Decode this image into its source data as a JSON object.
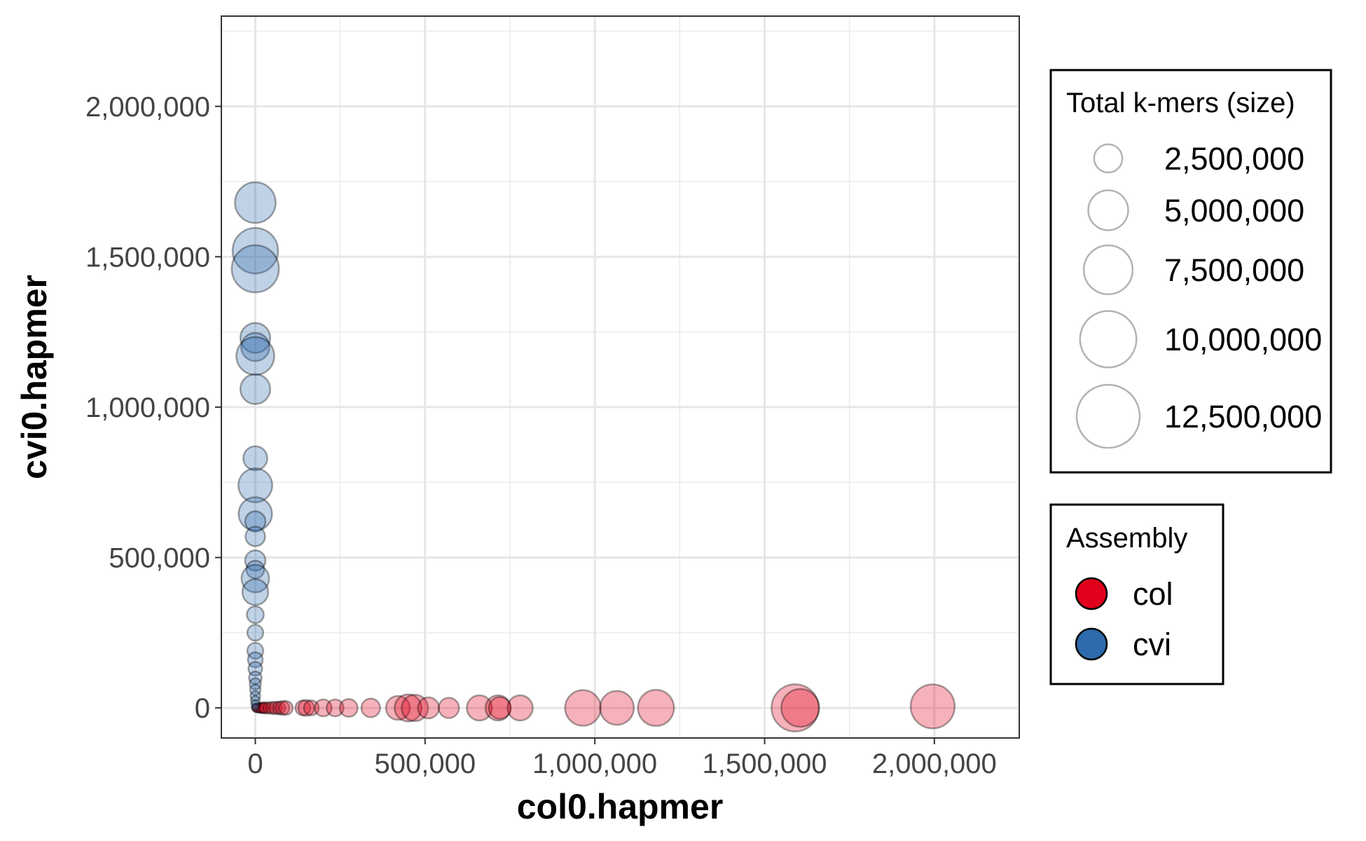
{
  "chart_data": {
    "type": "scatter",
    "title": "",
    "xlabel": "col0.hapmer",
    "ylabel": "cvi0.hapmer",
    "xlim": [
      -100000,
      2250000
    ],
    "ylim": [
      -100000,
      2300000
    ],
    "x_ticks": [
      0,
      500000,
      1000000,
      1500000,
      2000000
    ],
    "x_tick_labels": [
      "0",
      "500,000",
      "1,000,000",
      "1,500,000",
      "2,000,000"
    ],
    "y_ticks": [
      0,
      500000,
      1000000,
      1500000,
      2000000
    ],
    "y_tick_labels": [
      "0",
      "500,000",
      "1,000,000",
      "1,500,000",
      "2,000,000"
    ],
    "grid": true,
    "size_legend": {
      "title": "Total k-mers (size)",
      "entries": [
        {
          "label": "2,500,000",
          "value": 2500000
        },
        {
          "label": "5,000,000",
          "value": 5000000
        },
        {
          "label": "7,500,000",
          "value": 7500000
        },
        {
          "label": "10,000,000",
          "value": 10000000
        },
        {
          "label": "12,500,000",
          "value": 12500000
        }
      ]
    },
    "color_legend": {
      "title": "Assembly",
      "entries": [
        {
          "label": "col",
          "color": "#E0001B"
        },
        {
          "label": "cvi",
          "color": "#2E6BAD"
        }
      ]
    },
    "series": [
      {
        "name": "col",
        "color": "#E0001B",
        "points": [
          {
            "x": 2000,
            "y": 0,
            "size": 200000
          },
          {
            "x": 5000,
            "y": 0,
            "size": 250000
          },
          {
            "x": 10000,
            "y": 0,
            "size": 300000
          },
          {
            "x": 15000,
            "y": 0,
            "size": 300000
          },
          {
            "x": 20000,
            "y": 0,
            "size": 350000
          },
          {
            "x": 25000,
            "y": 0,
            "size": 350000
          },
          {
            "x": 30000,
            "y": 0,
            "size": 400000
          },
          {
            "x": 40000,
            "y": 0,
            "size": 400000
          },
          {
            "x": 50000,
            "y": 0,
            "size": 450000
          },
          {
            "x": 60000,
            "y": 0,
            "size": 500000
          },
          {
            "x": 70000,
            "y": 0,
            "size": 500000
          },
          {
            "x": 80000,
            "y": 0,
            "size": 600000
          },
          {
            "x": 90000,
            "y": 0,
            "size": 600000
          },
          {
            "x": 140000,
            "y": 0,
            "size": 700000
          },
          {
            "x": 150000,
            "y": 0,
            "size": 800000
          },
          {
            "x": 165000,
            "y": 0,
            "size": 700000
          },
          {
            "x": 200000,
            "y": 0,
            "size": 900000
          },
          {
            "x": 235000,
            "y": 0,
            "size": 900000
          },
          {
            "x": 275000,
            "y": 0,
            "size": 1000000
          },
          {
            "x": 340000,
            "y": 0,
            "size": 1100000
          },
          {
            "x": 420000,
            "y": 0,
            "size": 1800000
          },
          {
            "x": 450000,
            "y": 0,
            "size": 2300000
          },
          {
            "x": 470000,
            "y": 0,
            "size": 2200000
          },
          {
            "x": 510000,
            "y": 0,
            "size": 1400000
          },
          {
            "x": 570000,
            "y": 0,
            "size": 1300000
          },
          {
            "x": 660000,
            "y": 0,
            "size": 2000000
          },
          {
            "x": 715000,
            "y": 0,
            "size": 2000000
          },
          {
            "x": 720000,
            "y": 0,
            "size": 1500000
          },
          {
            "x": 780000,
            "y": 0,
            "size": 2000000
          },
          {
            "x": 965000,
            "y": 0,
            "size": 4000000
          },
          {
            "x": 1065000,
            "y": 0,
            "size": 3600000
          },
          {
            "x": 1180000,
            "y": 0,
            "size": 4100000
          },
          {
            "x": 1590000,
            "y": 0,
            "size": 7000000
          },
          {
            "x": 1605000,
            "y": 0,
            "size": 4500000
          },
          {
            "x": 1995000,
            "y": 5000,
            "size": 6100000
          }
        ]
      },
      {
        "name": "cvi",
        "color": "#2E6BAD",
        "points": [
          {
            "x": 0,
            "y": 1680000,
            "size": 5200000
          },
          {
            "x": 0,
            "y": 1520000,
            "size": 6500000
          },
          {
            "x": 0,
            "y": 1460000,
            "size": 7000000
          },
          {
            "x": 0,
            "y": 1230000,
            "size": 2800000
          },
          {
            "x": 0,
            "y": 1200000,
            "size": 2500000
          },
          {
            "x": 0,
            "y": 1170000,
            "size": 4500000
          },
          {
            "x": 0,
            "y": 1060000,
            "size": 2800000
          },
          {
            "x": 0,
            "y": 830000,
            "size": 1800000
          },
          {
            "x": 0,
            "y": 740000,
            "size": 3600000
          },
          {
            "x": 0,
            "y": 645000,
            "size": 3500000
          },
          {
            "x": 0,
            "y": 620000,
            "size": 1300000
          },
          {
            "x": 0,
            "y": 570000,
            "size": 1200000
          },
          {
            "x": 0,
            "y": 490000,
            "size": 1300000
          },
          {
            "x": 0,
            "y": 460000,
            "size": 1000000
          },
          {
            "x": 0,
            "y": 430000,
            "size": 2400000
          },
          {
            "x": 0,
            "y": 385000,
            "size": 2100000
          },
          {
            "x": 0,
            "y": 310000,
            "size": 900000
          },
          {
            "x": 0,
            "y": 250000,
            "size": 800000
          },
          {
            "x": 0,
            "y": 190000,
            "size": 800000
          },
          {
            "x": 0,
            "y": 160000,
            "size": 700000
          },
          {
            "x": 0,
            "y": 130000,
            "size": 600000
          },
          {
            "x": 0,
            "y": 100000,
            "size": 500000
          },
          {
            "x": 0,
            "y": 80000,
            "size": 400000
          },
          {
            "x": 0,
            "y": 60000,
            "size": 350000
          },
          {
            "x": 0,
            "y": 40000,
            "size": 300000
          },
          {
            "x": 0,
            "y": 25000,
            "size": 250000
          },
          {
            "x": 0,
            "y": 12000,
            "size": 200000
          },
          {
            "x": 0,
            "y": 3000,
            "size": 150000
          }
        ]
      }
    ]
  }
}
